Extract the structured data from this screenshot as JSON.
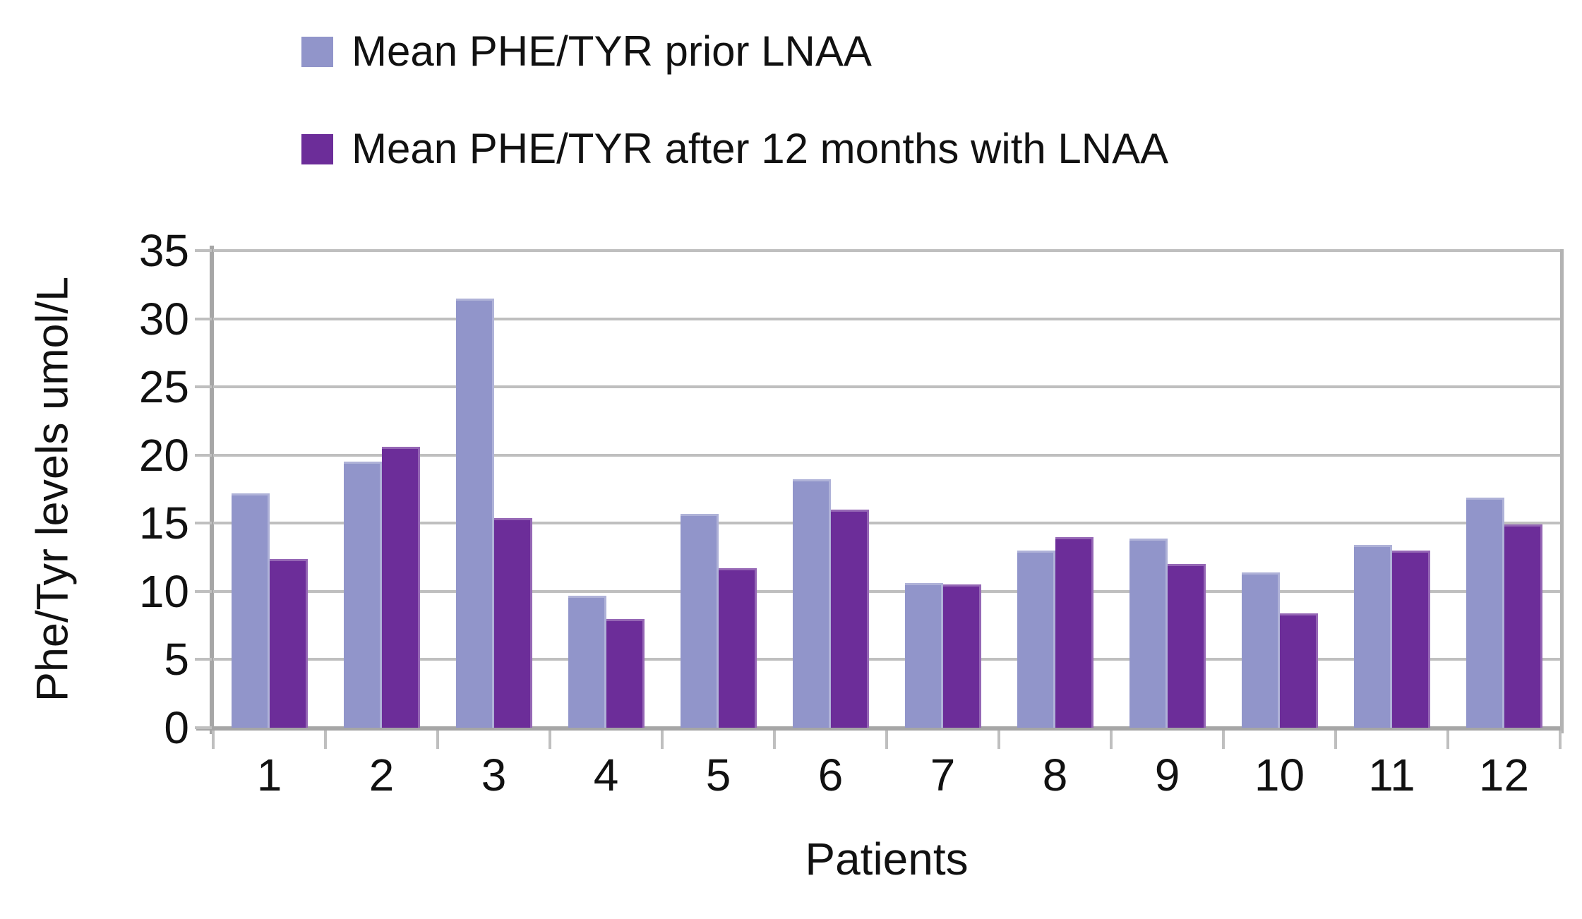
{
  "legend": {
    "items": [
      {
        "label": "Mean PHE/TYR prior LNAA",
        "color": "#9195CA"
      },
      {
        "label": "Mean PHE/TYR after 12 months with LNAA",
        "color": "#6C2D99"
      }
    ]
  },
  "chart_data": {
    "type": "bar",
    "title": "",
    "xlabel": "Patients",
    "ylabel": "Phe/Tyr levels umol/L",
    "categories": [
      "1",
      "2",
      "3",
      "4",
      "5",
      "6",
      "7",
      "8",
      "9",
      "10",
      "11",
      "12"
    ],
    "series": [
      {
        "name": "Mean PHE/TYR prior LNAA",
        "color": "#9195CA",
        "values": [
          17.2,
          19.5,
          31.5,
          9.7,
          15.7,
          18.2,
          10.6,
          13.0,
          13.9,
          11.4,
          13.4,
          16.9
        ]
      },
      {
        "name": "Mean PHE/TYR after 12 months with LNAA",
        "color": "#6C2D99",
        "values": [
          12.4,
          20.6,
          15.4,
          8.0,
          11.7,
          16.0,
          10.5,
          14.0,
          12.0,
          8.4,
          13.0,
          14.9
        ]
      }
    ],
    "ylim": [
      0,
      35
    ],
    "yticks": [
      0,
      5,
      10,
      15,
      20,
      25,
      30,
      35
    ],
    "grid": true,
    "legend_position": "top-left"
  },
  "colors": {
    "gridline": "#BFBFBF",
    "axis": "#A6A6A6",
    "text": "#111111",
    "background": "#FFFFFF"
  }
}
